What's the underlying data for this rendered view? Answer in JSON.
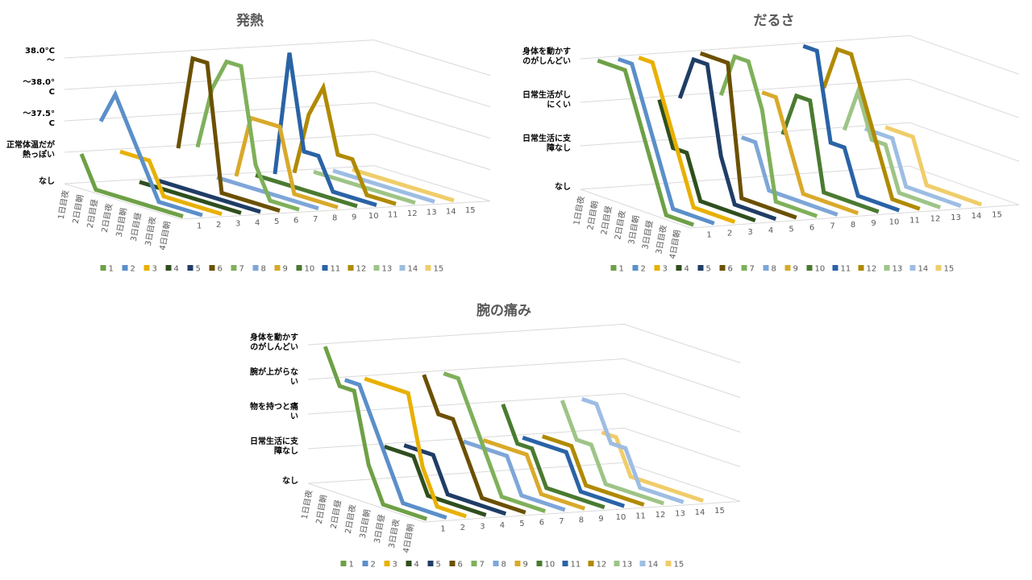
{
  "chart_data": [
    {
      "type": "line",
      "title": "発熱",
      "categories": [
        "1日目夜",
        "2日目朝",
        "2日目昼",
        "2日目夜",
        "3日目朝",
        "3日目昼",
        "3日目夜",
        "4日目朝"
      ],
      "ylim": [
        0,
        4
      ],
      "yticks": [
        {
          "value": 0,
          "label": "なし"
        },
        {
          "value": 1,
          "label": "正常体温だが熱っぽい"
        },
        {
          "value": 2,
          "label": "～37.5°C"
        },
        {
          "value": 3,
          "label": "～38.0°C"
        },
        {
          "value": 4,
          "label": "38.0°C～"
        }
      ],
      "series": [
        {
          "name": "1",
          "color": "#6ea046",
          "values": [
            1,
            0,
            0,
            0,
            0,
            0,
            0,
            0
          ]
        },
        {
          "name": "2",
          "color": "#5b8fc9",
          "values": [
            2,
            3,
            2,
            1,
            0,
            0,
            0,
            0
          ]
        },
        {
          "name": "3",
          "color": "#e8b000",
          "values": [
            1,
            1,
            1,
            0,
            0,
            0,
            0,
            0
          ]
        },
        {
          "name": "4",
          "color": "#2f4f1e",
          "values": [
            0,
            0,
            0,
            0,
            0,
            0,
            0,
            0
          ]
        },
        {
          "name": "5",
          "color": "#1f3d66",
          "values": [
            0,
            0,
            0,
            0,
            0,
            0,
            0,
            0
          ]
        },
        {
          "name": "6",
          "color": "#6b5000",
          "values": [
            1,
            4,
            4,
            0,
            0,
            0,
            0,
            0
          ]
        },
        {
          "name": "7",
          "color": "#7fb05a",
          "values": [
            1,
            3,
            4,
            4,
            1,
            0,
            0,
            0
          ]
        },
        {
          "name": "8",
          "color": "#7ea6d8",
          "values": [
            0,
            0,
            0,
            0,
            0,
            0,
            0,
            0
          ]
        },
        {
          "name": "9",
          "color": "#d9a92a",
          "values": [
            0,
            2,
            2,
            2,
            0,
            0,
            0,
            0
          ]
        },
        {
          "name": "10",
          "color": "#4a7a30",
          "values": [
            0,
            0,
            0,
            0,
            0,
            0,
            0,
            0
          ]
        },
        {
          "name": "11",
          "color": "#2a63a6",
          "values": [
            0,
            4,
            1,
            1,
            0,
            0,
            0,
            0
          ]
        },
        {
          "name": "12",
          "color": "#b08a00",
          "values": [
            0,
            2,
            3,
            1,
            1,
            0,
            0,
            0
          ]
        },
        {
          "name": "13",
          "color": "#9ec487",
          "values": [
            0,
            0,
            0,
            0,
            0,
            0,
            0,
            0
          ]
        },
        {
          "name": "14",
          "color": "#9dbde3",
          "values": [
            0,
            0,
            0,
            0,
            0,
            0,
            0,
            0
          ]
        },
        {
          "name": "15",
          "color": "#f0cd6a",
          "values": [
            0,
            0,
            0,
            0,
            0,
            0,
            0,
            0
          ]
        }
      ]
    },
    {
      "type": "line",
      "title": "だるさ",
      "categories": [
        "1日目夜",
        "2日目朝",
        "2日目昼",
        "2日目夜",
        "3日目朝",
        "3日目昼",
        "3日目夜",
        "4日目朝"
      ],
      "ylim": [
        0,
        3
      ],
      "yticks": [
        {
          "value": 0,
          "label": "なし"
        },
        {
          "value": 1,
          "label": "日常生活に支障なし"
        },
        {
          "value": 2,
          "label": "日常生活がしにくい"
        },
        {
          "value": 3,
          "label": "身体を動かすのがしんどい"
        }
      ],
      "series": [
        {
          "name": "1",
          "color": "#6ea046",
          "values": [
            3,
            3,
            3,
            2,
            1,
            0,
            0,
            0
          ]
        },
        {
          "name": "2",
          "color": "#5b8fc9",
          "values": [
            3,
            3,
            2,
            1,
            0,
            0,
            0,
            0
          ]
        },
        {
          "name": "3",
          "color": "#e8b000",
          "values": [
            3,
            3,
            2,
            1,
            0,
            0,
            0,
            0
          ]
        },
        {
          "name": "4",
          "color": "#2f4f1e",
          "values": [
            2,
            1,
            1,
            0,
            0,
            0,
            0,
            0
          ]
        },
        {
          "name": "5",
          "color": "#1f3d66",
          "values": [
            2,
            3,
            3,
            1,
            0,
            0,
            0,
            0
          ]
        },
        {
          "name": "6",
          "color": "#6b5000",
          "values": [
            3,
            3,
            3,
            0,
            0,
            0,
            0,
            0
          ]
        },
        {
          "name": "7",
          "color": "#7fb05a",
          "values": [
            2,
            3,
            3,
            2,
            0,
            0,
            0,
            0
          ]
        },
        {
          "name": "8",
          "color": "#7ea6d8",
          "values": [
            1,
            1,
            0,
            0,
            0,
            0,
            0,
            0
          ]
        },
        {
          "name": "9",
          "color": "#d9a92a",
          "values": [
            2,
            2,
            1,
            0,
            0,
            0,
            0,
            0
          ]
        },
        {
          "name": "10",
          "color": "#4a7a30",
          "values": [
            1,
            2,
            2,
            0,
            0,
            0,
            0,
            0
          ]
        },
        {
          "name": "11",
          "color": "#2a63a6",
          "values": [
            3,
            3,
            1,
            1,
            0,
            0,
            0,
            0
          ]
        },
        {
          "name": "12",
          "color": "#b08a00",
          "values": [
            2,
            3,
            3,
            2,
            1,
            0,
            0,
            0
          ]
        },
        {
          "name": "13",
          "color": "#9ec487",
          "values": [
            1,
            2,
            1,
            1,
            0,
            0,
            0,
            0
          ]
        },
        {
          "name": "14",
          "color": "#9dbde3",
          "values": [
            1,
            1,
            1,
            0,
            0,
            0,
            0,
            0
          ]
        },
        {
          "name": "15",
          "color": "#f0cd6a",
          "values": [
            1,
            1,
            1,
            0,
            0,
            0,
            0,
            0
          ]
        }
      ]
    },
    {
      "type": "line",
      "title": "腕の痛み",
      "categories": [
        "1日目夜",
        "2日目朝",
        "2日目昼",
        "2日目夜",
        "3日目朝",
        "3日目昼",
        "3日目夜",
        "4日目朝"
      ],
      "ylim": [
        0,
        4
      ],
      "yticks": [
        {
          "value": 0,
          "label": "なし"
        },
        {
          "value": 1,
          "label": "日常生活に支障なし"
        },
        {
          "value": 2,
          "label": "物を持つと痛い"
        },
        {
          "value": 3,
          "label": "腕が上がらない"
        },
        {
          "value": 4,
          "label": "身体を動かすのがしんどい"
        }
      ],
      "series": [
        {
          "name": "1",
          "color": "#6ea046",
          "values": [
            4,
            3,
            3,
            1,
            0,
            0,
            0,
            0
          ]
        },
        {
          "name": "2",
          "color": "#5b8fc9",
          "values": [
            3,
            3,
            2,
            1,
            0,
            0,
            0,
            0
          ]
        },
        {
          "name": "3",
          "color": "#e8b000",
          "values": [
            3,
            3,
            3,
            3,
            1,
            0,
            0,
            0
          ]
        },
        {
          "name": "4",
          "color": "#2f4f1e",
          "values": [
            1,
            1,
            1,
            0,
            0,
            0,
            0,
            0
          ]
        },
        {
          "name": "5",
          "color": "#1f3d66",
          "values": [
            1,
            1,
            1,
            0,
            0,
            0,
            0,
            0
          ]
        },
        {
          "name": "6",
          "color": "#6b5000",
          "values": [
            3,
            2,
            2,
            1,
            0,
            0,
            0,
            0
          ]
        },
        {
          "name": "7",
          "color": "#7fb05a",
          "values": [
            3,
            3,
            2,
            1,
            0,
            0,
            0,
            0
          ]
        },
        {
          "name": "8",
          "color": "#7ea6d8",
          "values": [
            1,
            1,
            1,
            1,
            0,
            0,
            0,
            0
          ]
        },
        {
          "name": "9",
          "color": "#d9a92a",
          "values": [
            1,
            1,
            1,
            1,
            0,
            0,
            0,
            0
          ]
        },
        {
          "name": "10",
          "color": "#4a7a30",
          "values": [
            2,
            1,
            1,
            0,
            0,
            0,
            0,
            0
          ]
        },
        {
          "name": "11",
          "color": "#2a63a6",
          "values": [
            1,
            1,
            1,
            1,
            0,
            0,
            0,
            0
          ]
        },
        {
          "name": "12",
          "color": "#b08a00",
          "values": [
            1,
            1,
            1,
            0,
            0,
            0,
            0,
            0
          ]
        },
        {
          "name": "13",
          "color": "#9ec487",
          "values": [
            2,
            1,
            1,
            0,
            0,
            0,
            0,
            0
          ]
        },
        {
          "name": "14",
          "color": "#9dbde3",
          "values": [
            2,
            2,
            1,
            1,
            0,
            0,
            0,
            0
          ]
        },
        {
          "name": "15",
          "color": "#f0cd6a",
          "values": [
            1,
            1,
            0,
            0,
            0,
            0,
            0,
            0
          ]
        }
      ]
    }
  ]
}
